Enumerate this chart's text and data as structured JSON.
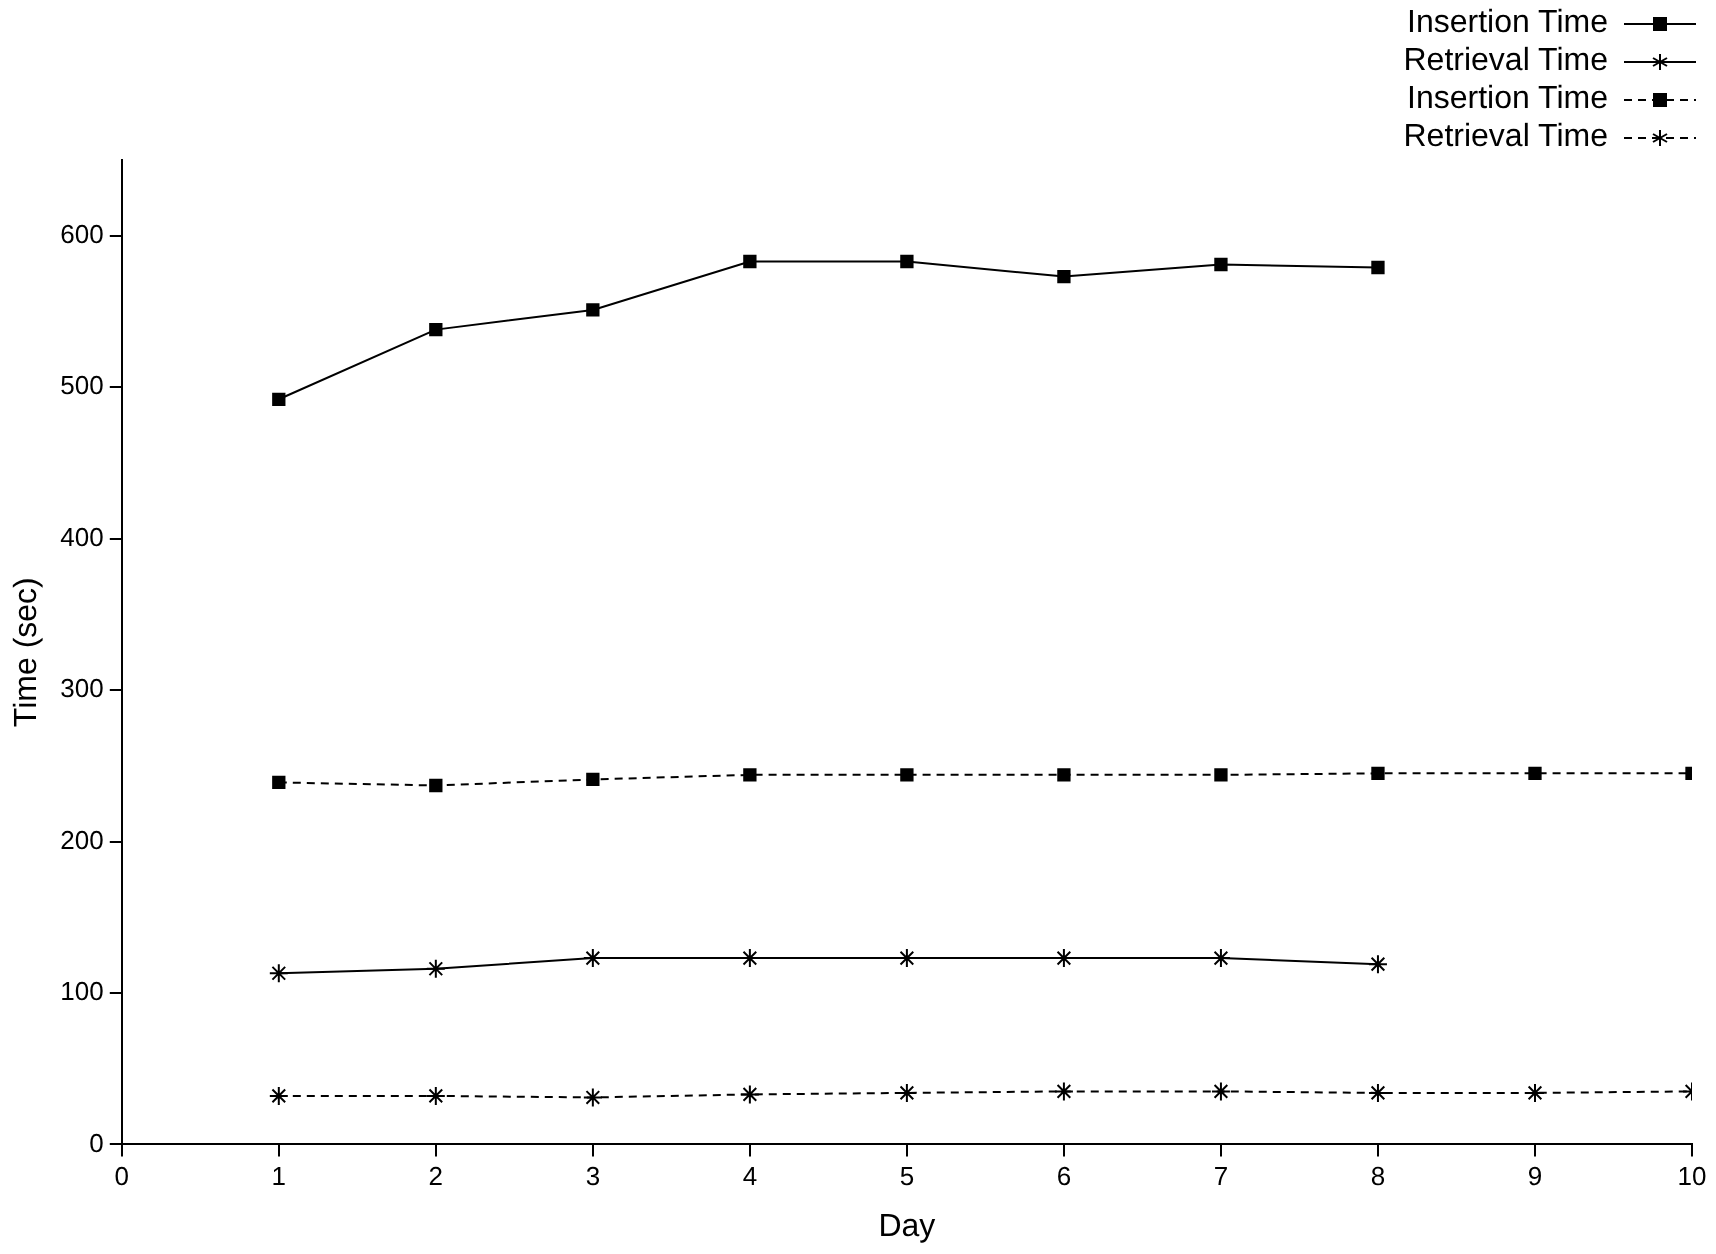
{
  "chart_data": {
    "type": "line",
    "xlabel": "Day",
    "ylabel": "Time (sec)",
    "xlim": [
      0,
      10
    ],
    "xticks": [
      0,
      1,
      2,
      3,
      4,
      5,
      6,
      7,
      8,
      9,
      10
    ],
    "ylim": [
      0,
      650
    ],
    "yticks": [
      0,
      100,
      200,
      300,
      400,
      500,
      600
    ],
    "grid": false,
    "legend": "top right",
    "series": [
      {
        "name": "Insertion Time",
        "color": "#000000",
        "marker": "square",
        "line_style": "solid",
        "x": [
          1,
          2,
          3,
          4,
          5,
          6,
          7,
          8
        ],
        "values": [
          492,
          538,
          551,
          583,
          583,
          573,
          581,
          579
        ]
      },
      {
        "name": "Retrieval Time",
        "color": "#000000",
        "marker": "cross",
        "line_style": "solid",
        "x": [
          1,
          2,
          3,
          4,
          5,
          6,
          7,
          8
        ],
        "values": [
          113,
          116,
          123,
          123,
          123,
          123,
          123,
          119
        ]
      },
      {
        "name": "Insertion Time",
        "color": "#000000",
        "marker": "square",
        "line_style": "dashed",
        "x": [
          1,
          2,
          3,
          4,
          5,
          6,
          7,
          8,
          9,
          10
        ],
        "values": [
          239,
          237,
          241,
          244,
          244,
          244,
          244,
          245,
          245,
          245
        ]
      },
      {
        "name": "Retrieval Time",
        "color": "#000000",
        "marker": "cross",
        "line_style": "dashed",
        "x": [
          1,
          2,
          3,
          4,
          5,
          6,
          7,
          8,
          9,
          10
        ],
        "values": [
          32,
          32,
          31,
          33,
          34,
          35,
          35,
          34,
          34,
          35
        ]
      }
    ]
  }
}
